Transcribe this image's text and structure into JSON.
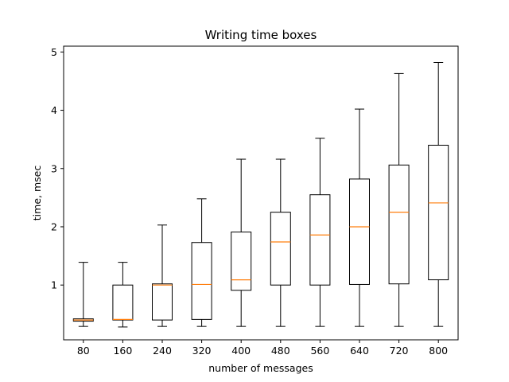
{
  "chart_data": {
    "type": "box",
    "title": "Writing time boxes",
    "xlabel": "number of messages",
    "ylabel": "time, msec",
    "ylim": [
      0.06,
      5.1
    ],
    "yticks": [
      1,
      2,
      3,
      4,
      5
    ],
    "grid": false,
    "categories": [
      "80",
      "160",
      "240",
      "320",
      "400",
      "480",
      "560",
      "640",
      "720",
      "800"
    ],
    "boxes": [
      {
        "category": "80",
        "whisker_low": 0.29,
        "q1": 0.38,
        "median": 0.4,
        "q3": 0.42,
        "whisker_high": 1.39
      },
      {
        "category": "160",
        "whisker_low": 0.28,
        "q1": 0.4,
        "median": 0.41,
        "q3": 1.0,
        "whisker_high": 1.39
      },
      {
        "category": "240",
        "whisker_low": 0.29,
        "q1": 0.4,
        "median": 1.0,
        "q3": 1.02,
        "whisker_high": 2.03
      },
      {
        "category": "320",
        "whisker_low": 0.29,
        "q1": 0.41,
        "median": 1.01,
        "q3": 1.73,
        "whisker_high": 2.48
      },
      {
        "category": "400",
        "whisker_low": 0.29,
        "q1": 0.91,
        "median": 1.09,
        "q3": 1.91,
        "whisker_high": 3.16
      },
      {
        "category": "480",
        "whisker_low": 0.29,
        "q1": 1.0,
        "median": 1.74,
        "q3": 2.25,
        "whisker_high": 3.16
      },
      {
        "category": "560",
        "whisker_low": 0.29,
        "q1": 1.0,
        "median": 1.86,
        "q3": 2.55,
        "whisker_high": 3.52
      },
      {
        "category": "640",
        "whisker_low": 0.29,
        "q1": 1.01,
        "median": 2.0,
        "q3": 2.82,
        "whisker_high": 4.02
      },
      {
        "category": "720",
        "whisker_low": 0.29,
        "q1": 1.02,
        "median": 2.25,
        "q3": 3.06,
        "whisker_high": 4.63
      },
      {
        "category": "800",
        "whisker_low": 0.29,
        "q1": 1.09,
        "median": 2.41,
        "q3": 3.4,
        "whisker_high": 4.82
      }
    ],
    "colors": {
      "box": "#000000",
      "median": "#ff7f0e",
      "axes": "#000000",
      "background": "#ffffff"
    }
  }
}
